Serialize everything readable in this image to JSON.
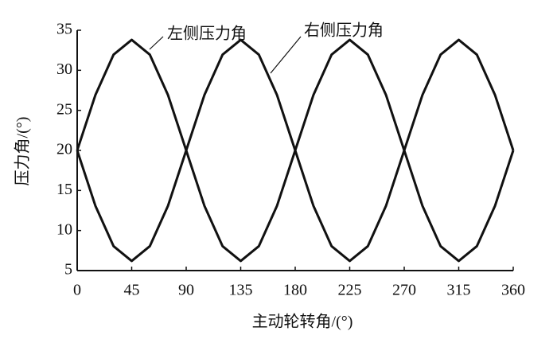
{
  "chart_data": {
    "type": "line",
    "x_label": "主动轮转角/(°)",
    "y_label": "压力角/(°)",
    "x": [
      0,
      15,
      30,
      45,
      60,
      75,
      90,
      105,
      120,
      135,
      150,
      165,
      180,
      195,
      210,
      225,
      240,
      255,
      270,
      285,
      300,
      315,
      330,
      345,
      360
    ],
    "series": [
      {
        "name": "左侧压力角",
        "color": "#111111",
        "values": [
          20,
          26.9,
          31.95,
          33.8,
          31.95,
          26.9,
          20,
          13.1,
          8.05,
          6.2,
          8.05,
          13.1,
          20,
          26.9,
          31.95,
          33.8,
          31.95,
          26.9,
          20,
          13.1,
          8.05,
          6.2,
          8.05,
          13.1,
          20
        ]
      },
      {
        "name": "右侧压力角",
        "color": "#111111",
        "values": [
          20,
          13.1,
          8.05,
          6.2,
          8.05,
          13.1,
          20,
          26.9,
          31.95,
          33.8,
          31.95,
          26.9,
          20,
          13.1,
          8.05,
          6.2,
          8.05,
          13.1,
          20,
          26.9,
          31.95,
          33.8,
          31.95,
          26.9,
          20
        ]
      }
    ],
    "xlim": [
      0,
      360
    ],
    "xticks": [
      0,
      45,
      90,
      135,
      180,
      225,
      270,
      315,
      360
    ],
    "ylim": [
      5,
      35
    ],
    "yticks": [
      5,
      10,
      15,
      20,
      25,
      30,
      35
    ],
    "grid": false
  }
}
